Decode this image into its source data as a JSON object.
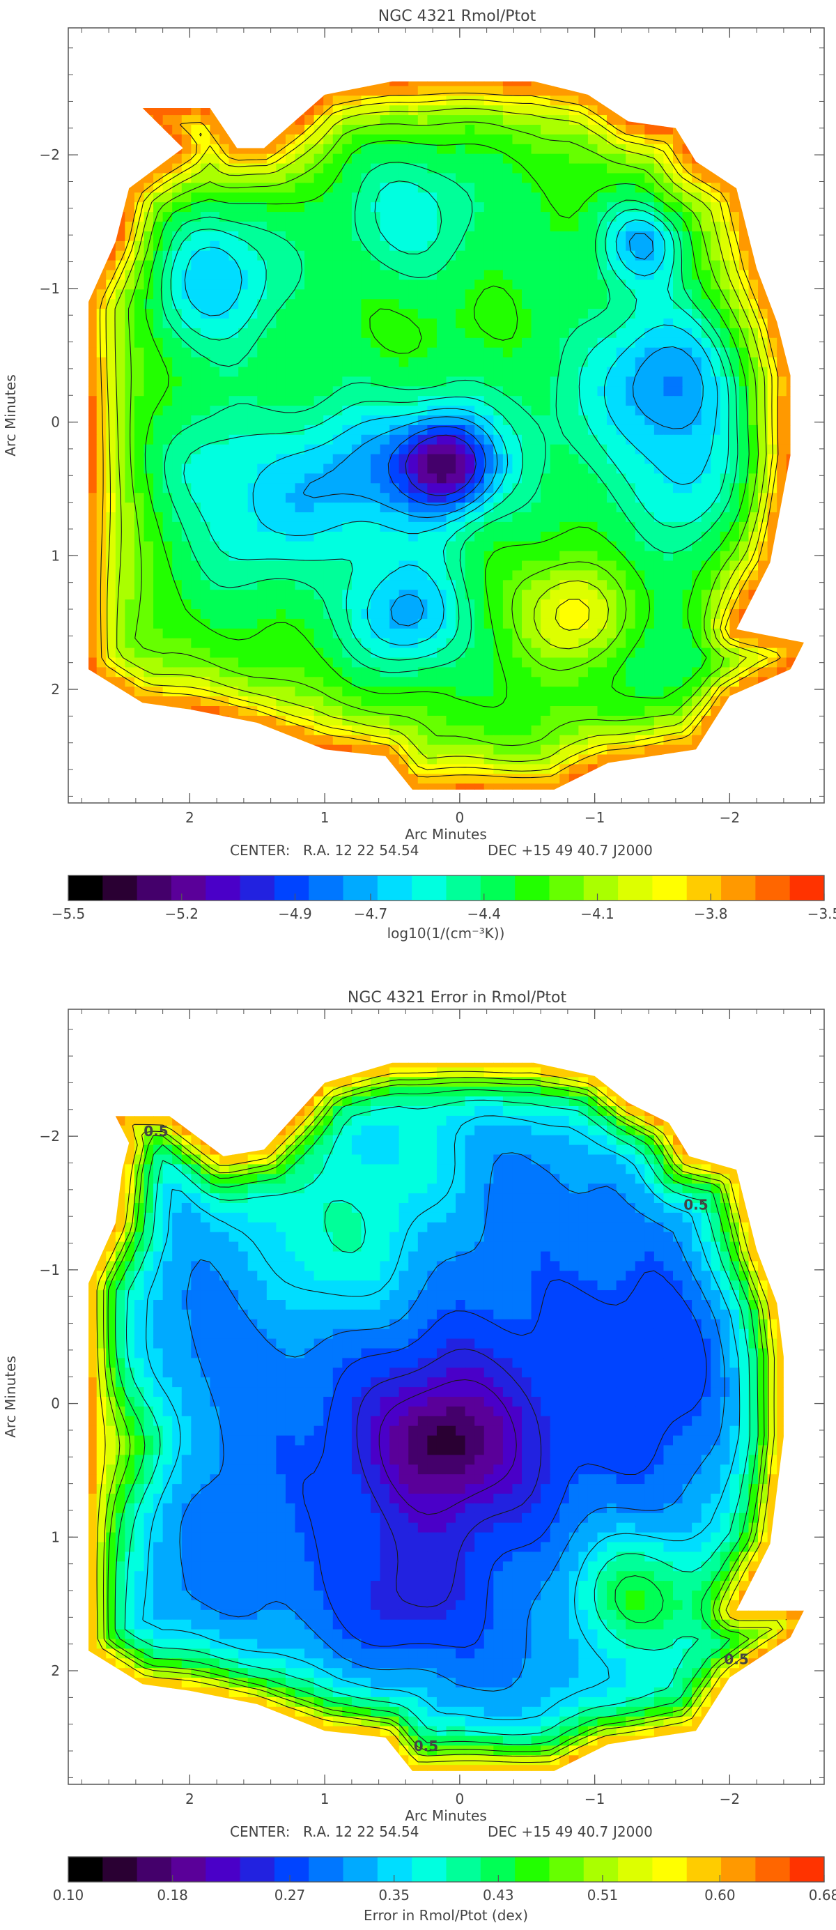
{
  "figure": {
    "center_line": {
      "center": "CENTER:",
      "ra": "R.A. 12 22 54.54",
      "dec": "DEC  +15 49 40.7",
      "epoch": "J2000"
    }
  },
  "chart_data": [
    {
      "type": "heatmap",
      "title": "NGC 4321 Rmol/Ptot",
      "xlabel": "Arc Minutes",
      "ylabel": "Arc Minutes",
      "xlim": [
        2.9,
        -2.7
      ],
      "ylim": [
        -2.95,
        2.85
      ],
      "xticks": [
        2,
        1,
        0,
        -1,
        -2
      ],
      "yticks": [
        -2,
        -1,
        0,
        1,
        2
      ],
      "colorbar": {
        "label": "log10(1/(cm⁻³K))",
        "range": [
          -5.5,
          -3.5
        ],
        "ticks": [
          "-5.5",
          "-5.2",
          "-4.9",
          "-4.7",
          "-4.4",
          "-4.1",
          "-3.8",
          "-3.5"
        ]
      },
      "map": {
        "base": -4.32,
        "edge_value": -3.55,
        "blobs": [
          {
            "x": 0.1,
            "y": 0.32,
            "amp": -0.75,
            "s": 0.22
          },
          {
            "x": 0.1,
            "y": 0.32,
            "amp": -0.28,
            "s": 0.55
          },
          {
            "x": 0.65,
            "y": 0.3,
            "amp": -0.16,
            "s": 0.35
          },
          {
            "x": 1.85,
            "y": -1.1,
            "amp": -0.38,
            "s": 0.38
          },
          {
            "x": 0.35,
            "y": -1.55,
            "amp": -0.25,
            "s": 0.4
          },
          {
            "x": -1.35,
            "y": -1.35,
            "amp": -0.42,
            "s": 0.22
          },
          {
            "x": -1.55,
            "y": -0.3,
            "amp": -0.48,
            "s": 0.42
          },
          {
            "x": -1.8,
            "y": 0.55,
            "amp": -0.28,
            "s": 0.35
          },
          {
            "x": 0.4,
            "y": 1.45,
            "amp": -0.42,
            "s": 0.3
          },
          {
            "x": 1.1,
            "y": 0.5,
            "amp": -0.25,
            "s": 0.35
          },
          {
            "x": 1.9,
            "y": 0.3,
            "amp": -0.22,
            "s": 0.3
          },
          {
            "x": 1.6,
            "y": 0.9,
            "amp": -0.18,
            "s": 0.3
          },
          {
            "x": -0.85,
            "y": 1.45,
            "amp": 0.42,
            "s": 0.26
          },
          {
            "x": -0.3,
            "y": 1.0,
            "amp": 0.12,
            "s": 0.4
          },
          {
            "x": -1.7,
            "y": 1.85,
            "amp": -0.2,
            "s": 0.35
          },
          {
            "x": 0.2,
            "y": -0.55,
            "amp": 0.1,
            "s": 0.5
          }
        ]
      },
      "contour_levels": [
        -5.0,
        -4.85,
        -4.7,
        -4.6,
        -4.5,
        -4.42,
        -4.3,
        -4.18,
        -4.06,
        -3.95,
        -3.85
      ]
    },
    {
      "type": "heatmap",
      "title": "NGC 4321 Error in Rmol/Ptot",
      "xlabel": "Arc Minutes",
      "ylabel": "Arc Minutes",
      "xlim": [
        2.9,
        -2.7
      ],
      "ylim": [
        -2.95,
        2.85
      ],
      "xticks": [
        2,
        1,
        0,
        -1,
        -2
      ],
      "yticks": [
        -2,
        -1,
        0,
        1,
        2
      ],
      "colorbar": {
        "label": "Error in Rmol/Ptot (dex)",
        "range": [
          0.1,
          0.68
        ],
        "ticks": [
          "0.10",
          "0.18",
          "0.27",
          "0.35",
          "0.43",
          "0.51",
          "0.60",
          "0.68"
        ]
      },
      "map": {
        "base": 0.295,
        "edge_value": 0.66,
        "blobs": [
          {
            "x": 0.1,
            "y": 0.3,
            "amp": -0.11,
            "s": 0.5
          },
          {
            "x": 0.1,
            "y": 0.3,
            "amp": -0.05,
            "s": 0.2
          },
          {
            "x": -1.3,
            "y": 1.45,
            "amp": 0.14,
            "s": 0.35
          },
          {
            "x": 0.9,
            "y": -1.2,
            "amp": 0.09,
            "s": 0.45
          },
          {
            "x": 2.5,
            "y": 0.3,
            "amp": 0.12,
            "s": 0.3
          },
          {
            "x": 0.3,
            "y": -1.75,
            "amp": 0.05,
            "s": 0.3
          },
          {
            "x": 0.4,
            "y": 1.5,
            "amp": -0.05,
            "s": 0.35
          },
          {
            "x": -1.6,
            "y": -0.3,
            "amp": -0.04,
            "s": 0.6
          }
        ]
      },
      "contour_levels": [
        0.22,
        0.25,
        0.28,
        0.31,
        0.35,
        0.39,
        0.43,
        0.47,
        0.5,
        0.55
      ],
      "annotation_labels": [
        {
          "text": "0.5",
          "x": 2.25,
          "y": -2.0
        },
        {
          "text": "0.5",
          "x": -1.75,
          "y": -1.45
        },
        {
          "text": "0.5",
          "x": -2.05,
          "y": 1.95
        },
        {
          "text": "0.5",
          "x": 0.25,
          "y": 2.6
        }
      ]
    }
  ],
  "colors": {
    "colormap": [
      "#000000",
      "#2a0033",
      "#44006b",
      "#5a0099",
      "#4a00c8",
      "#2222e0",
      "#0044ff",
      "#0077ff",
      "#00aaff",
      "#00ddff",
      "#00ffe0",
      "#00ff99",
      "#00ff55",
      "#22ff00",
      "#66ff00",
      "#aaff00",
      "#ddff00",
      "#ffff00",
      "#ffcc00",
      "#ff9900",
      "#ff6600",
      "#ff3300"
    ],
    "contour": "#1a1a1a",
    "axis": "#555555"
  }
}
